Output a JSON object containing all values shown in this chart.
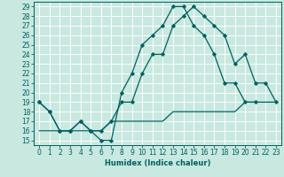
{
  "title": "",
  "xlabel": "Humidex (Indice chaleur)",
  "xlim": [
    -0.5,
    23.5
  ],
  "ylim": [
    14.5,
    29.5
  ],
  "xticks": [
    0,
    1,
    2,
    3,
    4,
    5,
    6,
    7,
    8,
    9,
    10,
    11,
    12,
    13,
    14,
    15,
    16,
    17,
    18,
    19,
    20,
    21,
    22,
    23
  ],
  "yticks": [
    15,
    16,
    17,
    18,
    19,
    20,
    21,
    22,
    23,
    24,
    25,
    26,
    27,
    28,
    29
  ],
  "bg_color": "#c8e8e0",
  "grid_color": "#ffffff",
  "line_color": "#006060",
  "line1_x": [
    0,
    1,
    2,
    3,
    4,
    5,
    6,
    7,
    8,
    9,
    10,
    11,
    12,
    13,
    14,
    15,
    16,
    17,
    18,
    19,
    20,
    21
  ],
  "line1_y": [
    19,
    18,
    16,
    16,
    17,
    16,
    15,
    15,
    20,
    22,
    25,
    26,
    27,
    29,
    29,
    27,
    26,
    24,
    21,
    21,
    19,
    19
  ],
  "line2_x": [
    0,
    1,
    2,
    3,
    4,
    5,
    6,
    7,
    8,
    9,
    10,
    11,
    12,
    13,
    14,
    15,
    16,
    17,
    18,
    19,
    20,
    21,
    22,
    23
  ],
  "line2_y": [
    19,
    18,
    16,
    16,
    17,
    16,
    16,
    17,
    19,
    19,
    22,
    24,
    24,
    27,
    28,
    29,
    28,
    27,
    26,
    23,
    24,
    21,
    21,
    19
  ],
  "line3_x": [
    0,
    1,
    2,
    3,
    4,
    5,
    6,
    7,
    8,
    9,
    10,
    11,
    12,
    13,
    14,
    15,
    16,
    17,
    18,
    19,
    20,
    21,
    22,
    23
  ],
  "line3_y": [
    16,
    16,
    16,
    16,
    16,
    16,
    16,
    17,
    17,
    17,
    17,
    17,
    17,
    18,
    18,
    18,
    18,
    18,
    18,
    18,
    19,
    19,
    19,
    19
  ],
  "tick_fontsize": 5.5,
  "xlabel_fontsize": 6
}
